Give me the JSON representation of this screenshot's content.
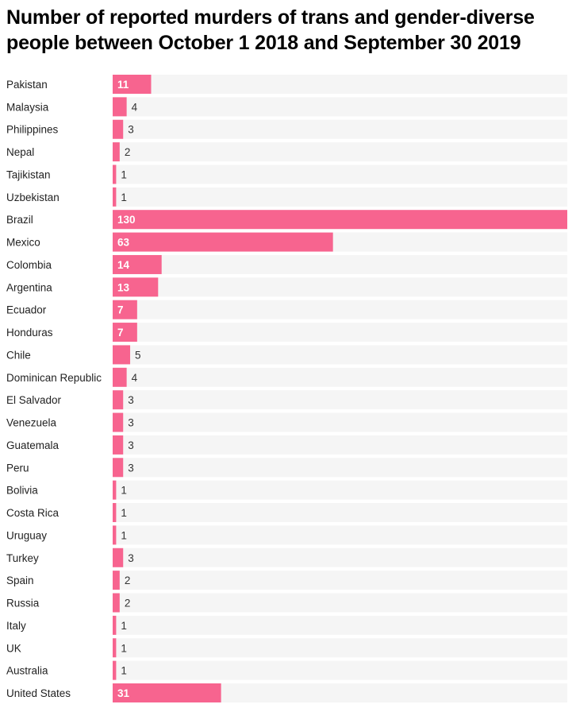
{
  "chart_data": {
    "type": "bar",
    "orientation": "horizontal",
    "title": "Number of reported murders of trans and gender-diverse people between October 1 2018 and September 30 2019",
    "categories": [
      "Pakistan",
      "Malaysia",
      "Philippines",
      "Nepal",
      "Tajikistan",
      "Uzbekistan",
      "Brazil",
      "Mexico",
      "Colombia",
      "Argentina",
      "Ecuador",
      "Honduras",
      "Chile",
      "Dominican Republic",
      "El Salvador",
      "Venezuela",
      "Guatemala",
      "Peru",
      "Bolivia",
      "Costa Rica",
      "Uruguay",
      "Turkey",
      "Spain",
      "Russia",
      "Italy",
      "UK",
      "Australia",
      "United States"
    ],
    "values": [
      11,
      4,
      3,
      2,
      1,
      1,
      130,
      63,
      14,
      13,
      7,
      7,
      5,
      4,
      3,
      3,
      3,
      3,
      1,
      1,
      1,
      3,
      2,
      2,
      1,
      1,
      1,
      31
    ],
    "xlim": [
      0,
      130
    ],
    "grid": false,
    "data_labels": true,
    "colors": {
      "bar": "#f7648f",
      "track": "#f5f5f5",
      "label_inside": "#ffffff",
      "label_outside": "#333333"
    }
  }
}
